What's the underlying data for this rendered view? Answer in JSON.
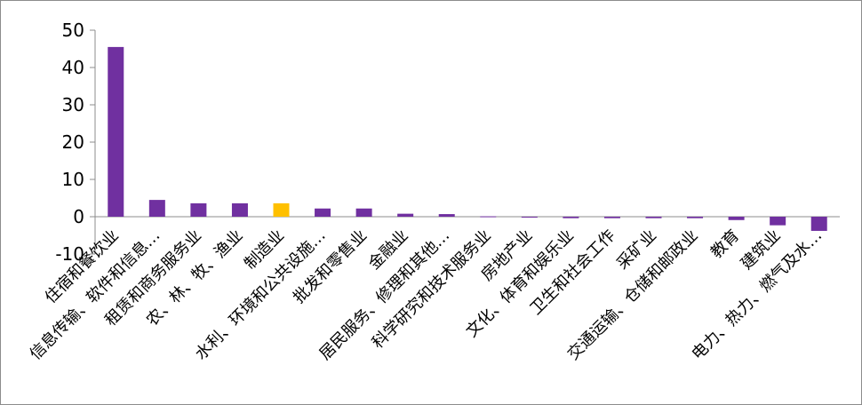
{
  "chart_data": {
    "type": "bar",
    "categories": [
      "住宿和餐饮业",
      "信息传输、软件和信息…",
      "租赁和商务服务业",
      "农、林、牧、渔业",
      "制造业",
      "水利、环境和公共设施…",
      "批发和零售业",
      "金融业",
      "居民服务、修理和其他…",
      "科学研究和技术服务业",
      "房地产业",
      "文化、体育和娱乐业",
      "卫生和社会工作",
      "采矿业",
      "交通运输、仓储和邮政业",
      "教育",
      "建筑业",
      "电力、热力、燃气及水…"
    ],
    "values": [
      45.5,
      4.5,
      3.6,
      3.6,
      3.6,
      2.2,
      2.2,
      0.8,
      0.7,
      0.1,
      -0.1,
      -0.4,
      -0.4,
      -0.4,
      -0.4,
      -0.9,
      -2.3,
      -3.8
    ],
    "colors": [
      "#7030a0",
      "#7030a0",
      "#7030a0",
      "#7030a0",
      "#ffc000",
      "#7030a0",
      "#7030a0",
      "#7030a0",
      "#7030a0",
      "#7030a0",
      "#7030a0",
      "#7030a0",
      "#7030a0",
      "#7030a0",
      "#7030a0",
      "#7030a0",
      "#7030a0",
      "#7030a0"
    ],
    "ylim": [
      -10,
      50
    ],
    "yticks": [
      "-10",
      "0",
      "10",
      "20",
      "30",
      "40",
      "50"
    ],
    "grid": false,
    "legend": "none"
  }
}
